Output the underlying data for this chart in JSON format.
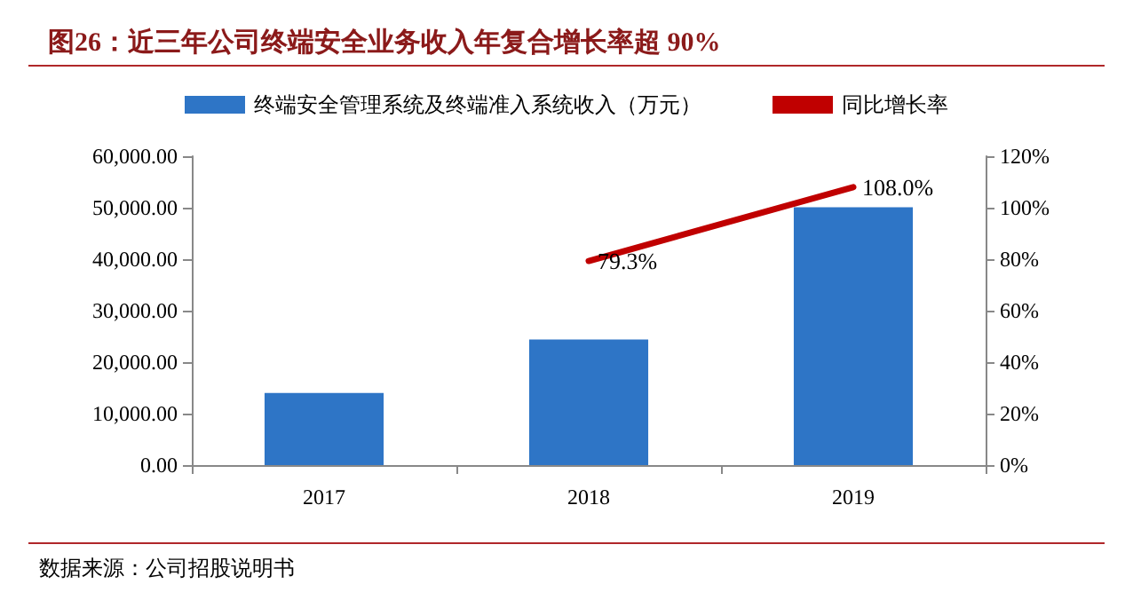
{
  "chart_data": {
    "type": "bar",
    "title": "图26：近三年公司终端安全业务收入年复合增长率超 90%",
    "categories": [
      "2017",
      "2018",
      "2019"
    ],
    "series": [
      {
        "name": "终端安全管理系统及终端准入系统收入（万元）",
        "color": "#2e75c6",
        "values": [
          14000,
          24400,
          50100
        ]
      },
      {
        "name": "同比增长率",
        "type": "line",
        "axis": "y2",
        "color": "#c00000",
        "values": [
          null,
          79.3,
          108.0
        ],
        "value_labels": [
          null,
          "79.3%",
          "108.0%"
        ]
      }
    ],
    "ylim": [
      0,
      60000
    ],
    "yticks": [
      {
        "value": 0,
        "label": "0.00"
      },
      {
        "value": 10000,
        "label": "10,000.00"
      },
      {
        "value": 20000,
        "label": "20,000.00"
      },
      {
        "value": 30000,
        "label": "30,000.00"
      },
      {
        "value": 40000,
        "label": "40,000.00"
      },
      {
        "value": 50000,
        "label": "50,000.00"
      },
      {
        "value": 60000,
        "label": "60,000.00"
      }
    ],
    "y2lim": [
      0,
      120
    ],
    "y2ticks": [
      {
        "value": 0,
        "label": "0%"
      },
      {
        "value": 20,
        "label": "20%"
      },
      {
        "value": 40,
        "label": "40%"
      },
      {
        "value": 60,
        "label": "60%"
      },
      {
        "value": 80,
        "label": "80%"
      },
      {
        "value": 100,
        "label": "100%"
      },
      {
        "value": 120,
        "label": "120%"
      }
    ],
    "legend": "top",
    "marker": "none",
    "annotations": [
      "数据来源：公司招股说明书"
    ]
  }
}
